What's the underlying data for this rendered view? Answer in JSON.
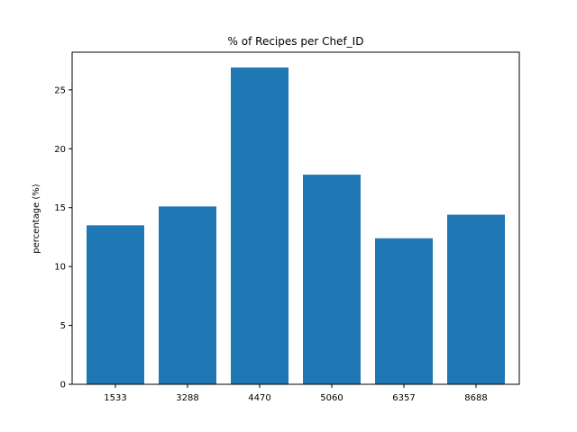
{
  "chart_data": {
    "type": "bar",
    "title": "% of Recipes per Chef_ID",
    "xlabel": "",
    "ylabel": "percentage (%)",
    "categories": [
      "1533",
      "3288",
      "4470",
      "5060",
      "6357",
      "8688"
    ],
    "values": [
      13.5,
      15.1,
      26.9,
      17.8,
      12.4,
      14.4
    ],
    "ylim": [
      0,
      28.2
    ],
    "yticks": [
      0,
      5,
      10,
      15,
      20,
      25
    ],
    "bar_color": "#1f77b4",
    "grid": false,
    "legend": "none"
  }
}
